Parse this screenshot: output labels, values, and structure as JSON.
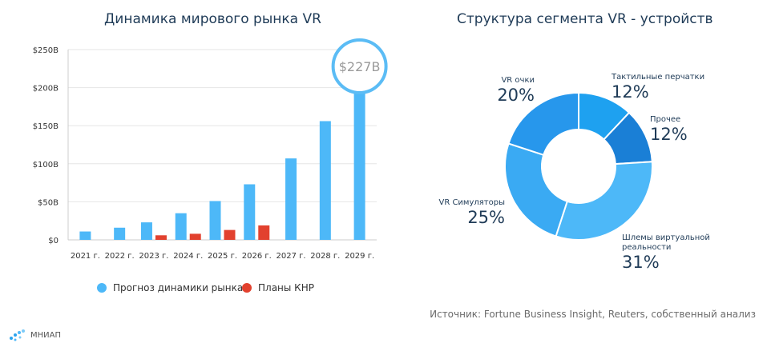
{
  "chart_data": [
    {
      "type": "bar",
      "title": "Динамика мирового рынка VR",
      "categories": [
        "2021 г.",
        "2022 г.",
        "2023 г.",
        "2024 г.",
        "2025 г.",
        "2026 г.",
        "2027 г.",
        "2028 г.",
        "2029 г."
      ],
      "series": [
        {
          "name": "Прогноз динамики рынка",
          "values": [
            11,
            16,
            23,
            35,
            51,
            73,
            107,
            156,
            227
          ],
          "color": "#4db8f8"
        },
        {
          "name": "Планы КНР",
          "values": [
            null,
            null,
            6,
            8,
            13,
            19,
            null,
            null,
            null
          ],
          "color": "#e2412e"
        }
      ],
      "ylim": [
        0,
        250
      ],
      "yticks": [
        "$0",
        "$50B",
        "$100B",
        "$150B",
        "$200B",
        "$250B"
      ],
      "ytick_values": [
        0,
        50,
        100,
        150,
        200,
        250
      ],
      "grid": true,
      "legend": "bottom",
      "highlight": {
        "category": "2029 г.",
        "label": "$227B"
      }
    },
    {
      "type": "pie",
      "title": "Структура сегмента VR - устройств",
      "slices": [
        {
          "label": "Тактильные перчатки",
          "value": 12,
          "pct_label": "12%",
          "color": "#1ea1f0"
        },
        {
          "label": "Прочее",
          "value": 12,
          "pct_label": "12%",
          "color": "#1a7fd6"
        },
        {
          "label": "Шлемы виртуальной реальности",
          "value": 31,
          "pct_label": "31%",
          "color": "#4db8f8"
        },
        {
          "label": "VR Симуляторы",
          "value": 25,
          "pct_label": "25%",
          "color": "#3aaaf3"
        },
        {
          "label": "VR очки",
          "value": 20,
          "pct_label": "20%",
          "color": "#2797ec"
        }
      ]
    }
  ],
  "source": "Источник: Fortune Business Insight, Reuters, собственный анализ",
  "logo": {
    "text": "МНИАП",
    "icon": "mniap-logo-icon"
  }
}
